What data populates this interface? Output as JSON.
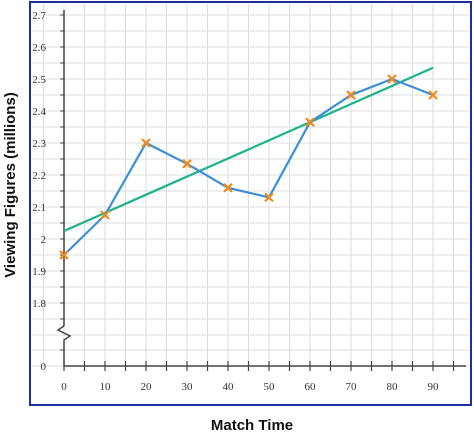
{
  "chart_data": {
    "type": "line",
    "xlabel": "Match Time",
    "ylabel": "Viewing Figures (millions)",
    "x_ticks": [
      0,
      10,
      20,
      30,
      40,
      50,
      60,
      70,
      80,
      90
    ],
    "y_ticks": [
      1.8,
      1.9,
      2,
      2.1,
      2.2,
      2.3,
      2.4,
      2.5,
      2.6,
      2.7
    ],
    "y_zero_label": "0",
    "ylim": [
      1.7,
      2.75
    ],
    "xlim": [
      0,
      100
    ],
    "axis_break": true,
    "grid": true,
    "series": [
      {
        "type": "line-with-markers",
        "marker": "x",
        "x": [
          0,
          10,
          20,
          30,
          40,
          50,
          60,
          70,
          80,
          90
        ],
        "values": [
          1.95,
          2.075,
          2.3,
          2.235,
          2.16,
          2.13,
          2.365,
          2.45,
          2.5,
          2.45
        ]
      },
      {
        "type": "trend-line",
        "x": [
          0,
          90
        ],
        "values": [
          2.025,
          2.535
        ]
      }
    ],
    "colors": {
      "data_line": "#3a8fd6",
      "marker": "#f08a1c",
      "trend_line": "#1ab38a",
      "frame": "#1c2f9e",
      "grid": "#dcdcdc"
    }
  }
}
